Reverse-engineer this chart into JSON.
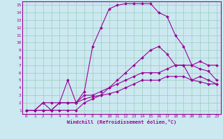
{
  "title": "",
  "xlabel": "Windchill (Refroidissement éolien,°C)",
  "bg_color": "#cce8f0",
  "line_color": "#990099",
  "grid_color": "#99ccbb",
  "xlim": [
    -0.5,
    23.5
  ],
  "ylim": [
    0.5,
    15.5
  ],
  "xticks": [
    0,
    1,
    2,
    3,
    4,
    5,
    6,
    7,
    8,
    9,
    10,
    11,
    12,
    13,
    14,
    15,
    16,
    17,
    18,
    19,
    20,
    21,
    22,
    23
  ],
  "yticks": [
    1,
    2,
    3,
    4,
    5,
    6,
    7,
    8,
    9,
    10,
    11,
    12,
    13,
    14,
    15
  ],
  "line2_x": [
    0,
    1,
    2,
    3,
    4,
    5,
    6,
    7,
    8,
    9,
    10,
    11,
    12,
    13,
    14,
    15,
    16,
    17,
    18,
    19,
    20,
    21,
    22,
    23
  ],
  "line2_y": [
    1,
    1,
    2,
    2,
    2,
    5,
    2,
    3.5,
    9.5,
    12,
    14.5,
    15,
    15.2,
    15.2,
    15.2,
    15.2,
    14,
    13.5,
    11,
    9.5,
    7,
    6.5,
    6.2,
    5
  ],
  "line1_x": [
    0,
    1,
    2,
    3,
    4,
    5,
    6,
    7,
    8,
    9,
    10,
    11,
    12,
    13,
    14,
    15,
    16,
    17,
    18,
    19,
    20,
    21,
    22,
    23
  ],
  "line1_y": [
    1,
    1,
    2,
    1,
    1,
    1,
    1,
    2,
    2.5,
    3,
    4,
    5,
    6,
    7,
    8,
    9,
    9.5,
    8.5,
    7,
    7,
    5,
    5.5,
    5,
    4.5
  ],
  "line3_x": [
    0,
    1,
    2,
    3,
    4,
    5,
    6,
    7,
    8,
    9,
    10,
    11,
    12,
    13,
    14,
    15,
    16,
    17,
    18,
    19,
    20,
    21,
    22,
    23
  ],
  "line3_y": [
    1,
    1,
    1,
    1,
    2,
    2,
    2,
    3,
    3,
    3.5,
    4,
    4.5,
    5,
    5.5,
    6,
    6,
    6,
    6.5,
    7,
    7,
    7,
    7.5,
    7,
    7
  ],
  "line4_x": [
    0,
    1,
    2,
    3,
    4,
    5,
    6,
    7,
    8,
    9,
    10,
    11,
    12,
    13,
    14,
    15,
    16,
    17,
    18,
    19,
    20,
    21,
    22,
    23
  ],
  "line4_y": [
    1,
    1,
    1,
    1,
    2,
    2,
    2,
    2.5,
    2.8,
    3,
    3.2,
    3.5,
    4,
    4.5,
    5,
    5,
    5,
    5.5,
    5.5,
    5.5,
    5,
    4.8,
    4.5,
    4.5
  ]
}
